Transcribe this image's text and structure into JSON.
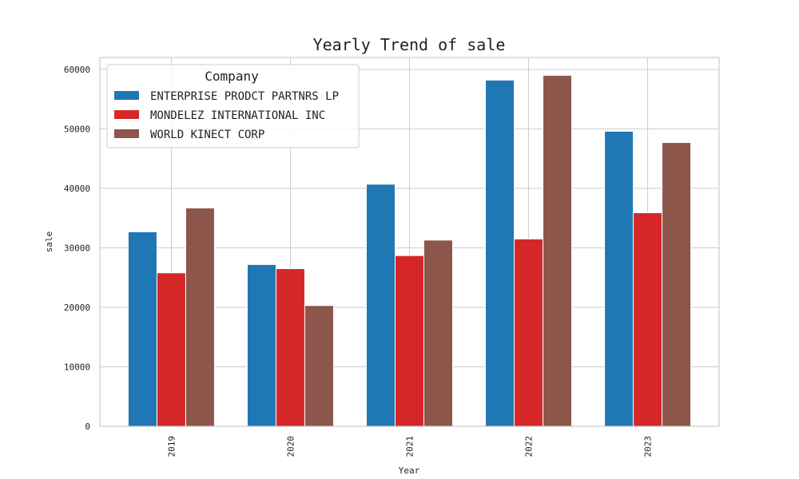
{
  "chart_data": {
    "type": "bar",
    "title": "Yearly Trend of sale",
    "xlabel": "Year",
    "ylabel": "sale",
    "categories": [
      "2019",
      "2020",
      "2021",
      "2022",
      "2023"
    ],
    "series": [
      {
        "name": "ENTERPRISE PRODCT PARTNRS LP",
        "color": "#1f77b4",
        "values": [
          32700,
          27200,
          40700,
          58200,
          49600
        ]
      },
      {
        "name": "MONDELEZ INTERNATIONAL INC",
        "color": "#d62728",
        "values": [
          25800,
          26500,
          28700,
          31500,
          35900
        ]
      },
      {
        "name": "WORLD KINECT CORP",
        "color": "#8c564b",
        "values": [
          36700,
          20300,
          31300,
          59000,
          47700
        ]
      }
    ],
    "ylim": [
      0,
      62000
    ],
    "yticks": [
      0,
      10000,
      20000,
      30000,
      40000,
      50000,
      60000
    ],
    "grid": true,
    "legend": {
      "title": "Company",
      "placement": "top-left"
    }
  }
}
